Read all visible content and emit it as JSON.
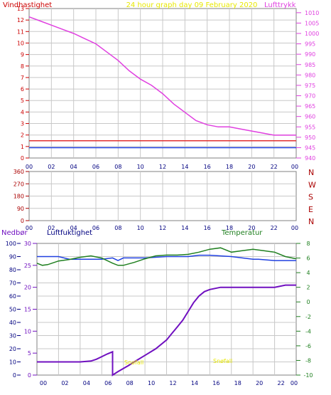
{
  "panel1": {
    "title_left": "Vindhastighet",
    "title_center": "24 hour graph day   09 February 2020",
    "title_right": "Lufttrykk",
    "left_ticks": [
      0,
      1,
      2,
      3,
      4,
      5,
      6,
      7,
      8,
      9,
      10,
      11,
      12,
      13
    ],
    "right_ticks": [
      940,
      945,
      950,
      955,
      960,
      965,
      970,
      975,
      980,
      985,
      990,
      995,
      1000,
      1005,
      1010
    ],
    "hour_labels": [
      "00",
      "02",
      "04",
      "06",
      "08",
      "10",
      "12",
      "14",
      "16",
      "18",
      "20",
      "22",
      "00"
    ]
  },
  "panel2": {
    "left_ticks": [
      "0",
      "90",
      "180",
      "270",
      "360"
    ],
    "right_letters": [
      "N",
      "W",
      "S",
      "E",
      "N"
    ],
    "hour_labels": [
      "00",
      "02",
      "04",
      "06",
      "08",
      "10",
      "12",
      "14",
      "16",
      "18",
      "20",
      "22",
      "00"
    ]
  },
  "panel3": {
    "title_left": "Nedbør",
    "title_mid": "Luftfuktighet",
    "title_right": "Temperatur",
    "far_left_ticks": [
      0,
      10,
      20,
      30,
      40,
      50,
      60,
      70,
      80,
      90,
      100
    ],
    "left_ticks": [
      0,
      5,
      10,
      15,
      20,
      25,
      30
    ],
    "right_ticks": [
      -10,
      -8,
      -6,
      -4,
      -2,
      0,
      2,
      4,
      6,
      8
    ],
    "hour_labels": [
      "00",
      "02",
      "04",
      "06",
      "08",
      "10",
      "12",
      "14",
      "16",
      "18",
      "20",
      "22",
      "00"
    ],
    "annotation_1": "Snøfall",
    "annotation_2": "Snøfall"
  },
  "colors": {
    "title_red": "#cc0000",
    "title_yellow": "#e8e800",
    "magenta": "#e040e0",
    "red_line": "#e03030",
    "blue_line": "#2040e0",
    "green": "#208020",
    "purple": "#7010c0",
    "dark_red": "#aa0000",
    "navy": "#000080",
    "grid": "#c8c8c8"
  },
  "chart_data": [
    {
      "type": "line",
      "xlabel": "",
      "x_hours": [
        0,
        24
      ],
      "series": [
        {
          "name": "Lufttrykk",
          "axis": "right",
          "x": [
            0,
            1,
            2,
            3,
            4,
            5,
            6,
            7,
            8,
            9,
            10,
            11,
            12,
            13,
            14,
            15,
            16,
            17,
            18,
            19,
            20,
            21,
            22,
            23,
            24
          ],
          "values": [
            1008,
            1006,
            1004,
            1002,
            1000,
            997.5,
            995,
            991,
            987,
            982,
            978,
            975,
            971,
            966,
            962,
            958,
            956,
            955,
            955,
            954,
            953,
            952,
            951,
            951,
            951
          ]
        },
        {
          "name": "Vindhastighet (gust)",
          "axis": "left",
          "x": [
            0,
            24
          ],
          "values": [
            1.5,
            1.5
          ]
        },
        {
          "name": "Vindhastighet",
          "axis": "left",
          "x": [
            0,
            24
          ],
          "values": [
            0.9,
            0.9
          ]
        }
      ],
      "ylim_left": [
        0,
        13
      ],
      "ylim_right": [
        940,
        1012
      ]
    },
    {
      "type": "scatter",
      "x_hours": [
        0,
        24
      ],
      "ylim": [
        0,
        360
      ],
      "values": []
    },
    {
      "type": "line",
      "x_hours": [
        0,
        24
      ],
      "series": [
        {
          "name": "Luftfuktighet",
          "axis": "far_left",
          "x": [
            0,
            2,
            3,
            4,
            5,
            6,
            7,
            7.5,
            8,
            10,
            12,
            14,
            15,
            16,
            18,
            20,
            20.5,
            22,
            24
          ],
          "values": [
            90,
            90,
            88,
            88,
            88,
            88,
            89,
            87,
            89,
            89,
            90,
            90,
            91,
            91,
            90,
            88,
            88,
            87,
            87
          ]
        },
        {
          "name": "Temperatur",
          "axis": "right",
          "x": [
            0,
            0.5,
            1,
            2,
            3,
            4,
            5,
            6,
            7,
            7.5,
            8,
            9,
            10,
            11,
            12,
            13,
            14,
            15,
            16,
            17,
            18,
            19,
            20,
            21,
            22,
            23,
            24
          ],
          "values": [
            5.3,
            5.0,
            5.1,
            5.6,
            5.8,
            6.1,
            6.3,
            6.0,
            5.3,
            5.0,
            5.0,
            5.4,
            5.9,
            6.3,
            6.4,
            6.4,
            6.5,
            6.8,
            7.2,
            7.4,
            6.8,
            7.0,
            7.2,
            7.0,
            6.8,
            6.2,
            5.9
          ]
        },
        {
          "name": "Nedbør",
          "axis": "left",
          "x": [
            0,
            1,
            2,
            3,
            4,
            5,
            5.5,
            6,
            6.5,
            7,
            7,
            7.5,
            8,
            8.5,
            9,
            10,
            11,
            12,
            12.5,
            13,
            13.5,
            14,
            14.5,
            15,
            15.5,
            16,
            17,
            18,
            19,
            20,
            21,
            22,
            23,
            24
          ],
          "values": [
            3,
            3,
            3,
            3,
            3,
            3.2,
            3.6,
            4.2,
            4.8,
            5.3,
            0,
            0.8,
            1.5,
            2.2,
            3.0,
            4.5,
            6.0,
            8.0,
            9.5,
            11.0,
            12.5,
            14.5,
            16.5,
            18.0,
            19.0,
            19.5,
            20,
            20,
            20,
            20,
            20,
            20,
            20.5,
            20.5
          ]
        }
      ],
      "ylim_far_left": [
        0,
        100
      ],
      "ylim_left": [
        0,
        30
      ],
      "ylim_right": [
        -10,
        8
      ]
    }
  ]
}
